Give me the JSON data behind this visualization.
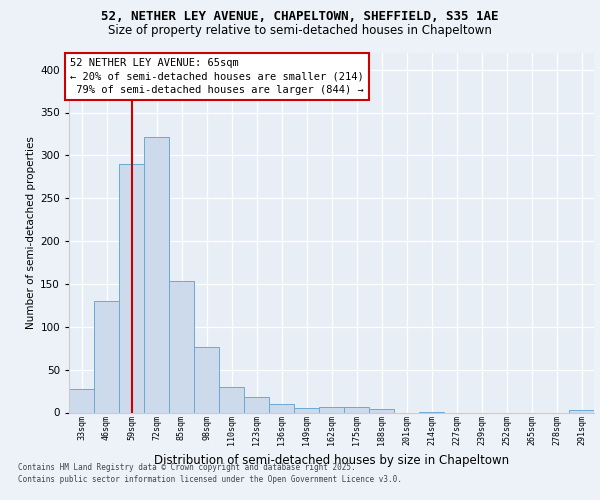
{
  "title1": "52, NETHER LEY AVENUE, CHAPELTOWN, SHEFFIELD, S35 1AE",
  "title2": "Size of property relative to semi-detached houses in Chapeltown",
  "xlabel": "Distribution of semi-detached houses by size in Chapeltown",
  "ylabel": "Number of semi-detached properties",
  "categories": [
    "33sqm",
    "46sqm",
    "59sqm",
    "72sqm",
    "85sqm",
    "98sqm",
    "110sqm",
    "123sqm",
    "136sqm",
    "149sqm",
    "162sqm",
    "175sqm",
    "188sqm",
    "201sqm",
    "214sqm",
    "227sqm",
    "239sqm",
    "252sqm",
    "265sqm",
    "278sqm",
    "291sqm"
  ],
  "values": [
    27,
    130,
    290,
    322,
    153,
    76,
    30,
    18,
    10,
    5,
    6,
    6,
    4,
    0,
    1,
    0,
    0,
    0,
    0,
    0,
    3
  ],
  "bar_color": "#ccdaec",
  "bar_edge_color": "#6aaad4",
  "annotation_line1": "52 NETHER LEY AVENUE: 65sqm",
  "annotation_line2": "← 20% of semi-detached houses are smaller (214)",
  "annotation_line3": " 79% of semi-detached houses are larger (844) →",
  "red_line_color": "#cc0000",
  "annotation_box_edge": "#cc0000",
  "ylim": [
    0,
    420
  ],
  "yticks": [
    0,
    50,
    100,
    150,
    200,
    250,
    300,
    350,
    400
  ],
  "footer1": "Contains HM Land Registry data © Crown copyright and database right 2025.",
  "footer2": "Contains public sector information licensed under the Open Government Licence v3.0.",
  "fig_bg": "#edf2f8",
  "plot_bg": "#e8eef6"
}
